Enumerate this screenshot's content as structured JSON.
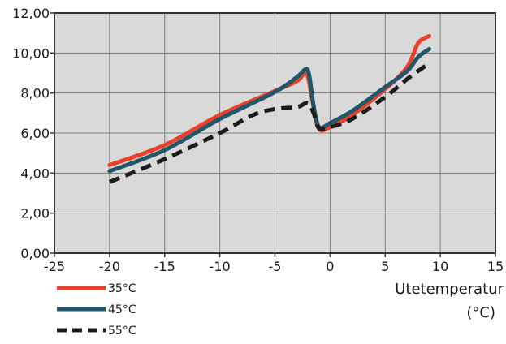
{
  "chart_data": {
    "type": "line",
    "xlabel": "Utetemperatur",
    "xlabel_unit": "(°C)",
    "ylabel": "",
    "xlim": [
      -25,
      15
    ],
    "ylim": [
      0,
      12
    ],
    "x_ticks": [
      -25,
      -20,
      -15,
      -10,
      -5,
      0,
      5,
      10,
      15
    ],
    "y_ticks": [
      "0,00",
      "2,00",
      "4,00",
      "6,00",
      "8,00",
      "10,00",
      "12,00"
    ],
    "y_tick_values": [
      0,
      2,
      4,
      6,
      8,
      10,
      12
    ],
    "grid": true,
    "legend_position": "bottom-left",
    "background_color": "#d9d9d9",
    "series": [
      {
        "name": "35°C",
        "color": "#e8412a",
        "dash": "solid",
        "points": [
          [
            -20,
            4.4
          ],
          [
            -15,
            5.4
          ],
          [
            -10,
            6.9
          ],
          [
            -5,
            8.1
          ],
          [
            -3,
            8.6
          ],
          [
            -2.3,
            9.0
          ],
          [
            -2.0,
            8.8
          ],
          [
            -1.5,
            7.3
          ],
          [
            -1.0,
            6.2
          ],
          [
            0,
            6.3
          ],
          [
            2,
            6.9
          ],
          [
            5,
            8.2
          ],
          [
            7,
            9.3
          ],
          [
            8,
            10.5
          ],
          [
            9,
            10.85
          ]
        ]
      },
      {
        "name": "45°C",
        "color": "#22566b",
        "dash": "solid",
        "points": [
          [
            -20,
            4.1
          ],
          [
            -15,
            5.15
          ],
          [
            -10,
            6.7
          ],
          [
            -5,
            8.05
          ],
          [
            -3,
            8.8
          ],
          [
            -2.2,
            9.2
          ],
          [
            -1.9,
            8.9
          ],
          [
            -1.5,
            7.4
          ],
          [
            -1.0,
            6.3
          ],
          [
            0,
            6.5
          ],
          [
            2,
            7.1
          ],
          [
            5,
            8.3
          ],
          [
            7,
            9.1
          ],
          [
            8,
            9.8
          ],
          [
            9,
            10.2
          ]
        ]
      },
      {
        "name": "55°C",
        "color": "#1c1c1c",
        "dash": "dashed",
        "points": [
          [
            -20,
            3.55
          ],
          [
            -15,
            4.7
          ],
          [
            -10,
            6.0
          ],
          [
            -7,
            6.9
          ],
          [
            -5,
            7.2
          ],
          [
            -3,
            7.3
          ],
          [
            -2,
            7.5
          ],
          [
            -1.5,
            7.0
          ],
          [
            -1.0,
            6.25
          ],
          [
            0,
            6.3
          ],
          [
            2,
            6.7
          ],
          [
            5,
            7.8
          ],
          [
            7,
            8.7
          ],
          [
            9,
            9.5
          ]
        ]
      }
    ]
  }
}
